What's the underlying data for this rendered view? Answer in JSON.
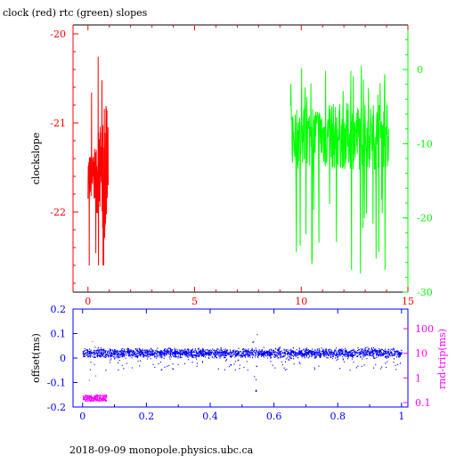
{
  "title": "clock (red) rtc (green) slopes",
  "footer": "2018-09-09  monopole.physics.ubc.ca",
  "colors": {
    "red": "#ff0000",
    "green": "#00ff00",
    "blue": "#0000ff",
    "magenta": "#ff00ff",
    "frame": "#000000"
  },
  "chart_data": [
    {
      "type": "line",
      "ylabel": "clockslope",
      "xlim": [
        -0.7,
        15
      ],
      "ylim": [
        -22.9,
        -19.9
      ],
      "ylim_right": [
        -30,
        6
      ],
      "xticks": [
        "0",
        "5",
        "10",
        "15"
      ],
      "yticks_left": [
        "-20",
        "-21",
        "-22"
      ],
      "yticks_right": [
        "0",
        "-10",
        "-20",
        "-30"
      ],
      "series": [
        {
          "axis": "left",
          "color": "red",
          "x_range": [
            0.0,
            0.95
          ],
          "y_center": -21.6,
          "y_spread": [
            -22.6,
            -20.0
          ]
        },
        {
          "axis": "right",
          "color": "green",
          "x_range": [
            9.5,
            14.1
          ],
          "y_center": -9,
          "y_spread": [
            -28.5,
            2.5
          ]
        }
      ]
    },
    {
      "type": "scatter",
      "ylabel": "offset(ms)",
      "ylabel_right": "rnd-trip(ms)",
      "xlim": [
        -0.03,
        1.02
      ],
      "ylim": [
        -0.2,
        0.2
      ],
      "right_scale": "log",
      "xticks": [
        "0",
        "0.2",
        "0.4",
        "0.6",
        "0.8",
        "1"
      ],
      "yticks_left": [
        "0.2",
        "0.1",
        "0",
        "-0.1",
        "-0.2"
      ],
      "yticks_right": [
        "100",
        "10",
        "1",
        "0.1"
      ],
      "series": [
        {
          "axis": "left",
          "color": "blue",
          "x_range": [
            0,
            1
          ],
          "y_center": 0.02,
          "y_spread": [
            -0.2,
            0.17
          ]
        },
        {
          "axis": "right",
          "color": "magenta",
          "x_range": [
            0,
            0.075
          ],
          "y_center": 0.15,
          "y_spread": [
            0.1,
            30
          ]
        }
      ]
    }
  ]
}
